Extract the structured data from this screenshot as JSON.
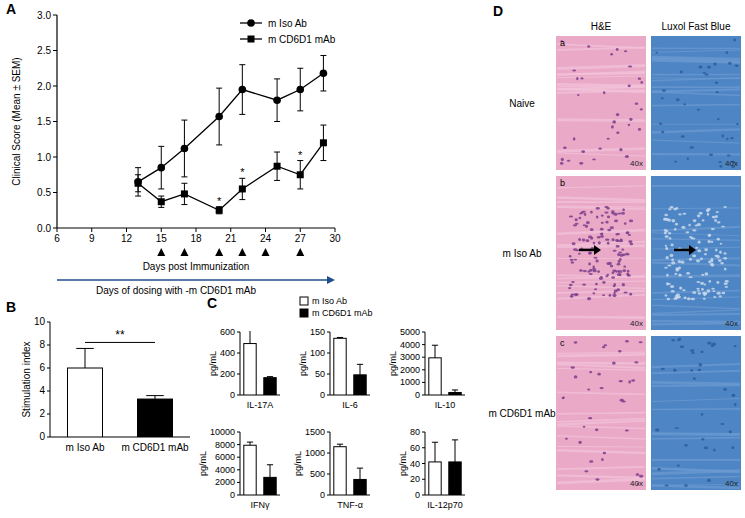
{
  "chart_data": [
    {
      "type": "line",
      "panel": "A",
      "x_label": "Days post Immunization",
      "y_label": "Clinical Score (Mean ± SEM)",
      "x": [
        13,
        15,
        17,
        20,
        22,
        25,
        27,
        29
      ],
      "xlim": [
        6,
        30
      ],
      "xticks": [
        6,
        9,
        12,
        15,
        18,
        21,
        24,
        27,
        30
      ],
      "ylim": [
        0,
        3
      ],
      "yticks": [
        {
          "value": 0,
          "label": "0.0"
        },
        0.5,
        {
          "value": 1,
          "label": "1.0"
        },
        1.5,
        {
          "value": 2,
          "label": "2.0"
        },
        2.5,
        {
          "value": 3,
          "label": "3.0"
        }
      ],
      "series": [
        {
          "name": "m Iso Ab",
          "color": "#000000",
          "marker": "circle",
          "values": [
            0.65,
            0.85,
            1.12,
            1.57,
            1.95,
            1.8,
            1.95,
            2.18
          ],
          "error": [
            0.2,
            0.3,
            0.4,
            0.4,
            0.35,
            0.3,
            0.3,
            0.25
          ]
        },
        {
          "name": "m CD6D1 mAb",
          "color": "#000000",
          "marker": "square",
          "values": [
            0.63,
            0.37,
            0.48,
            0.25,
            0.55,
            0.87,
            0.75,
            1.2
          ],
          "error": [
            0.12,
            0.08,
            0.15,
            0.05,
            0.15,
            0.2,
            0.2,
            0.25
          ],
          "significance": [
            null,
            null,
            null,
            "*",
            "*",
            null,
            "*",
            null
          ]
        }
      ],
      "legend": "upper right",
      "dosing_days": [
        15,
        17,
        20,
        22,
        24,
        27
      ],
      "dosing_label": "Days of dosing with -m CD6D1 mAb"
    },
    {
      "type": "bar",
      "panel": "B",
      "y_label": "Stimulation index",
      "categories": [
        "m Iso Ab",
        "m CD6D1 mAb"
      ],
      "values": [
        6.0,
        3.3
      ],
      "error": [
        1.7,
        0.3
      ],
      "colors": [
        "#ffffff",
        "#000000"
      ],
      "ylim": [
        0,
        10
      ],
      "yticks": [
        0,
        2,
        4,
        6,
        8,
        10
      ],
      "significance": "**"
    },
    {
      "type": "bar",
      "panel": "C",
      "x_label": "IL-17A",
      "y_label": "pg/mL",
      "values": [
        490,
        165
      ],
      "error": [
        150,
        10
      ],
      "colors": [
        "#ffffff",
        "#000000"
      ],
      "ylim": [
        0,
        600
      ],
      "yticks": [
        0,
        200,
        400,
        600
      ],
      "legend": "upper right",
      "legend_labels": [
        "m Iso Ab",
        "m CD6D1 mAb"
      ]
    },
    {
      "type": "bar",
      "x_label": "IL-6",
      "y_label": "pg/mL",
      "values": [
        135,
        48
      ],
      "error": [
        2,
        25
      ],
      "colors": [
        "#ffffff",
        "#000000"
      ],
      "ylim": [
        0,
        150
      ],
      "yticks": [
        0,
        50,
        100,
        150
      ]
    },
    {
      "type": "bar",
      "x_label": "IL-10",
      "y_label": "pg/mL",
      "values": [
        2950,
        200
      ],
      "error": [
        1000,
        200
      ],
      "colors": [
        "#ffffff",
        "#000000"
      ],
      "ylim": [
        0,
        5000
      ],
      "yticks": [
        0,
        1000,
        2000,
        3000,
        4000,
        5000
      ]
    },
    {
      "type": "bar",
      "x_label": "IFNγ",
      "y_label": "pg/mL",
      "values": [
        7900,
        2800
      ],
      "error": [
        500,
        2000
      ],
      "colors": [
        "#ffffff",
        "#000000"
      ],
      "ylim": [
        0,
        10000
      ],
      "yticks": [
        0,
        2000,
        4000,
        6000,
        8000,
        10000
      ]
    },
    {
      "type": "bar",
      "x_label": "TNF-α",
      "y_label": "pg/mL",
      "values": [
        1150,
        370
      ],
      "error": [
        60,
        270
      ],
      "colors": [
        "#ffffff",
        "#000000"
      ],
      "ylim": [
        0,
        1500
      ],
      "yticks": [
        0,
        500,
        1000,
        1500
      ]
    },
    {
      "type": "bar",
      "x_label": "IL-12p70",
      "y_label": "pg/mL",
      "values": [
        42,
        42
      ],
      "error": [
        25,
        28
      ],
      "colors": [
        "#ffffff",
        "#000000"
      ],
      "ylim": [
        0,
        80
      ],
      "yticks": [
        0,
        20,
        40,
        60,
        80
      ]
    }
  ],
  "panel_d": {
    "panel": "D",
    "columns": [
      "H&E",
      "Luxol Fast Blue"
    ],
    "rows": [
      {
        "label": "Naive",
        "letter": "a"
      },
      {
        "label": "m Iso Ab",
        "letter": "b"
      },
      {
        "label": "m CD6D1 mAb",
        "letter": "c"
      }
    ],
    "magnification": "40x"
  }
}
